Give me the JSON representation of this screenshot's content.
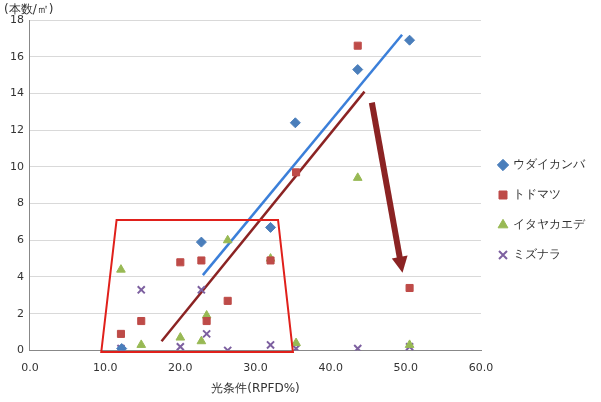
{
  "chart_data": {
    "type": "scatter",
    "y_label": "(本数/㎡)",
    "x_label": "光条件(RPFD%)",
    "xlim": [
      0,
      60
    ],
    "xticks": [
      {
        "value": 0,
        "label": "0.0"
      },
      {
        "value": 10,
        "label": "10.0"
      },
      {
        "value": 20,
        "label": "20.0"
      },
      {
        "value": 30,
        "label": "30.0"
      },
      {
        "value": 40,
        "label": "40.0"
      },
      {
        "value": 50,
        "label": "50.0"
      },
      {
        "value": 60,
        "label": "60.0"
      }
    ],
    "ylim": [
      0,
      18
    ],
    "yticks": [
      0,
      2,
      4,
      6,
      8,
      10,
      12,
      14,
      16,
      18
    ],
    "grid": true,
    "legend": "right",
    "series": [
      {
        "name": "ウダイカンバ",
        "color": "#4a7ebb",
        "marker": "diamond",
        "x": [
          12.2,
          22.8,
          32.0,
          35.3,
          43.6,
          50.5
        ],
        "values": [
          0.1,
          5.9,
          6.7,
          12.4,
          15.3,
          16.9
        ]
      },
      {
        "name": "トドマツ",
        "color": "#be4b48",
        "marker": "square",
        "x": [
          12.1,
          14.8,
          20.0,
          22.8,
          23.5,
          26.3,
          32.0,
          35.4,
          43.6,
          50.5
        ],
        "values": [
          0.9,
          1.6,
          4.8,
          4.9,
          1.6,
          2.7,
          4.9,
          9.7,
          16.6,
          3.4
        ]
      },
      {
        "name": "イタヤカエデ",
        "color": "#98b954",
        "marker": "triangle",
        "x": [
          12.1,
          14.8,
          20.0,
          22.8,
          23.5,
          26.3,
          32.0,
          35.4,
          43.6,
          50.5
        ],
        "values": [
          4.4,
          0.3,
          0.7,
          0.5,
          1.9,
          6.0,
          5.0,
          0.4,
          9.4,
          0.3
        ]
      },
      {
        "name": "ミズナラ",
        "color": "#7d60a0",
        "marker": "x",
        "x": [
          12.1,
          14.8,
          20.0,
          22.8,
          23.5,
          26.3,
          32.0,
          35.4,
          43.6,
          50.5
        ],
        "values": [
          0.1,
          3.3,
          0.2,
          3.3,
          0.9,
          0.0,
          0.3,
          0.1,
          0.1,
          0.2
        ]
      }
    ],
    "trend_lines": [
      {
        "color": "#3b7fd9",
        "x": [
          23.0,
          49.5
        ],
        "values": [
          4.1,
          17.2
        ]
      },
      {
        "color": "#8b2323",
        "x": [
          17.5,
          44.5
        ],
        "values": [
          0.5,
          14.1
        ]
      }
    ]
  }
}
